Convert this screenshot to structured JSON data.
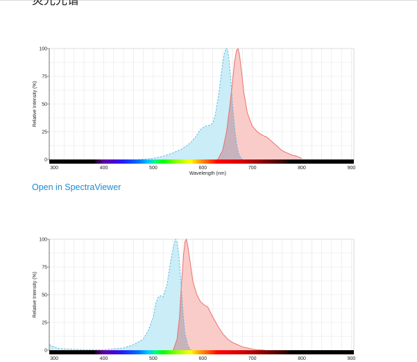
{
  "page": {
    "title": "荧光光谱",
    "link_label": "Open in SpectraViewer"
  },
  "colors": {
    "excitation_fill": "#c7ecf7",
    "excitation_stroke": "#5bbbe0",
    "emission_fill": "#f9c7c3",
    "emission_stroke": "#e8706b",
    "overlap_fill": "#c8b3bd",
    "link": "#1a8dd0"
  },
  "chart_data": [
    {
      "type": "area",
      "title": "",
      "xlabel": "Wavelength (nm)",
      "ylabel": "Relative Intensity (%)",
      "xlim": [
        290,
        905
      ],
      "ylim": [
        0,
        100
      ],
      "x_ticks": [
        "300",
        "400",
        "500",
        "600",
        "700",
        "800",
        "900"
      ],
      "y_ticks": [
        "0",
        "25",
        "50",
        "75",
        "100"
      ],
      "grid": true,
      "series": [
        {
          "style": "dashed",
          "x": [
            470,
            500,
            520,
            540,
            560,
            575,
            585,
            595,
            605,
            615,
            620,
            625,
            632,
            638,
            643,
            647,
            650,
            653,
            656,
            660,
            664,
            668,
            672,
            676,
            680
          ],
          "y": [
            0,
            1,
            3,
            6,
            10,
            15,
            20,
            27,
            30,
            31,
            33,
            40,
            58,
            80,
            95,
            100,
            99,
            90,
            75,
            50,
            30,
            15,
            6,
            2,
            0
          ]
        },
        {
          "style": "solid",
          "x": [
            630,
            640,
            648,
            655,
            660,
            664,
            668,
            671,
            674,
            678,
            683,
            690,
            700,
            710,
            720,
            730,
            740,
            750,
            760,
            770,
            780,
            790,
            800
          ],
          "y": [
            0,
            8,
            25,
            50,
            70,
            88,
            98,
            100,
            95,
            80,
            60,
            42,
            30,
            25,
            22,
            20,
            16,
            12,
            8,
            6,
            4,
            3,
            1
          ]
        }
      ]
    },
    {
      "type": "area",
      "title": "",
      "xlabel": "",
      "ylabel": "Relative Intensity (%)",
      "xlim": [
        290,
        905
      ],
      "ylim": [
        0,
        100
      ],
      "x_ticks": [
        "300",
        "400",
        "500",
        "600",
        "700",
        "800",
        "900"
      ],
      "y_ticks": [
        "0",
        "25",
        "50",
        "75",
        "100"
      ],
      "grid": true,
      "series": [
        {
          "style": "dashed",
          "x": [
            290,
            300,
            310,
            330,
            360,
            380,
            400,
            440,
            460,
            480,
            490,
            500,
            505,
            510,
            515,
            520,
            528,
            535,
            540,
            545,
            548,
            552,
            556,
            560,
            564,
            570,
            576
          ],
          "y": [
            5,
            3,
            1.5,
            1,
            0.5,
            0.5,
            0.5,
            2,
            5,
            10,
            18,
            30,
            42,
            48,
            49,
            48,
            60,
            80,
            92,
            100,
            98,
            85,
            60,
            35,
            15,
            4,
            0
          ]
        },
        {
          "style": "solid",
          "x": [
            540,
            548,
            553,
            557,
            561,
            564,
            567,
            570,
            575,
            580,
            588,
            595,
            602,
            610,
            620,
            630,
            640,
            650,
            660,
            670,
            680,
            690,
            700,
            710,
            725
          ],
          "y": [
            0,
            10,
            30,
            60,
            85,
            98,
            100,
            93,
            78,
            62,
            50,
            44,
            41,
            39,
            30,
            22,
            15,
            10,
            7,
            5,
            3,
            2,
            1,
            0.5,
            0
          ]
        }
      ]
    }
  ]
}
